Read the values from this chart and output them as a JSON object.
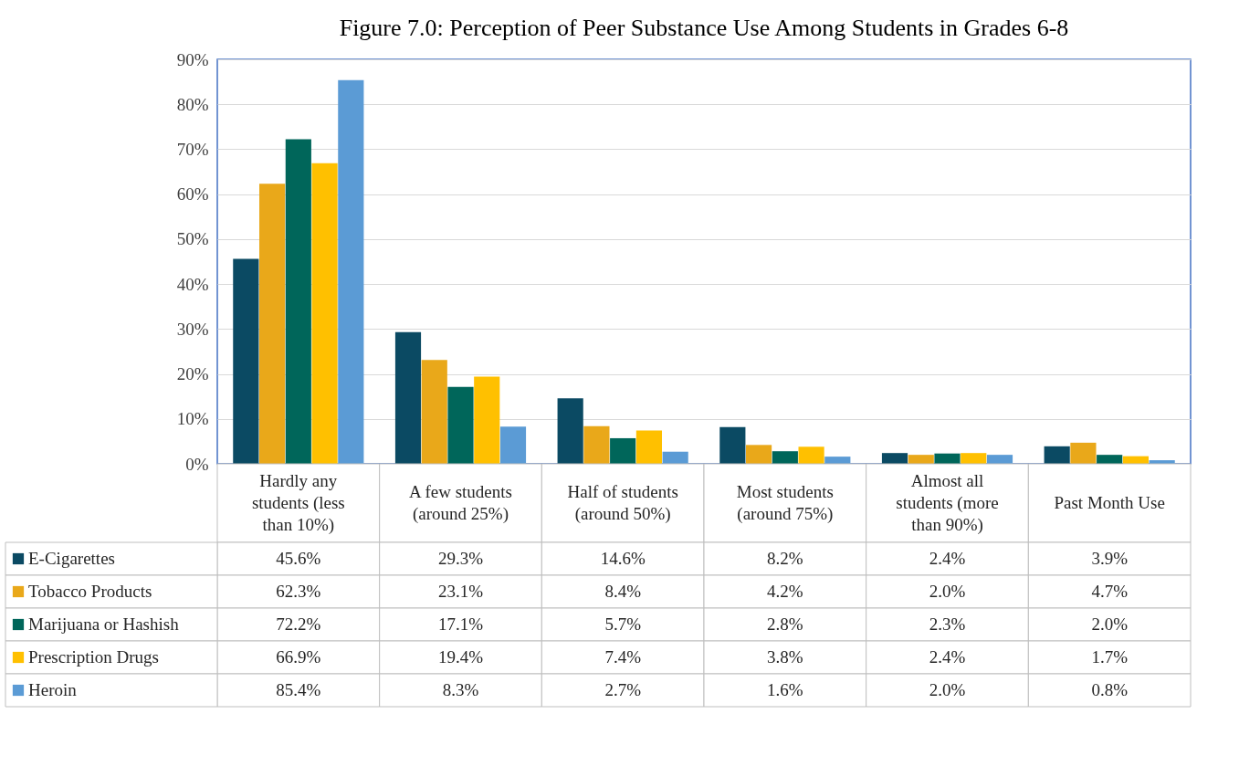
{
  "chart_data": {
    "type": "bar",
    "title": "Figure 7.0: Perception of Peer Substance Use Among Students in Grades 6-8",
    "categories": [
      "Hardly any students (less than 10%)",
      "A few students (around 25%)",
      "Half of students (around 50%)",
      "Most students (around 75%)",
      "Almost all students (more than 90%)",
      "Past Month Use"
    ],
    "series": [
      {
        "name": "E-Cigarettes",
        "color": "#0b4a63",
        "values": [
          45.6,
          29.3,
          14.6,
          8.2,
          2.4,
          3.9
        ],
        "value_labels": [
          "45.6%",
          "29.3%",
          "14.6%",
          "8.2%",
          "2.4%",
          "3.9%"
        ]
      },
      {
        "name": "Tobacco Products",
        "color": "#e9a81a",
        "values": [
          62.3,
          23.1,
          8.4,
          4.2,
          2.0,
          4.7
        ],
        "value_labels": [
          "62.3%",
          "23.1%",
          "8.4%",
          "4.2%",
          "2.0%",
          "4.7%"
        ]
      },
      {
        "name": "Marijuana or Hashish",
        "color": "#00665a",
        "values": [
          72.2,
          17.1,
          5.7,
          2.8,
          2.3,
          2.0
        ],
        "value_labels": [
          "72.2%",
          "17.1%",
          "5.7%",
          "2.8%",
          "2.3%",
          "2.0%"
        ]
      },
      {
        "name": "Prescription Drugs",
        "color": "#ffc000",
        "values": [
          66.9,
          19.4,
          7.4,
          3.8,
          2.4,
          1.7
        ],
        "value_labels": [
          "66.9%",
          "19.4%",
          "7.4%",
          "3.8%",
          "2.4%",
          "1.7%"
        ]
      },
      {
        "name": "Heroin",
        "color": "#5b9bd5",
        "values": [
          85.4,
          8.3,
          2.7,
          1.6,
          2.0,
          0.8
        ],
        "value_labels": [
          "85.4%",
          "8.3%",
          "2.7%",
          "1.6%",
          "2.0%",
          "0.8%"
        ]
      }
    ],
    "ylim": [
      0,
      90
    ],
    "yticks": [
      {
        "value": 0,
        "label": "0%"
      },
      {
        "value": 10,
        "label": "10%"
      },
      {
        "value": 20,
        "label": "20%"
      },
      {
        "value": 30,
        "label": "30%"
      },
      {
        "value": 40,
        "label": "40%"
      },
      {
        "value": 50,
        "label": "50%"
      },
      {
        "value": 60,
        "label": "60%"
      },
      {
        "value": 70,
        "label": "70%"
      },
      {
        "value": 80,
        "label": "80%"
      },
      {
        "value": 90,
        "label": "90%"
      }
    ],
    "grid": "y",
    "legend": "bottom left"
  }
}
